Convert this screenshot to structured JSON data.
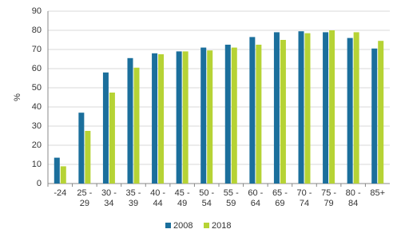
{
  "chart_data": {
    "type": "bar",
    "y_label": "%",
    "categories": [
      "-24",
      "25 - 29",
      "30 - 34",
      "35 - 39",
      "40 - 44",
      "45 - 49",
      "50 - 54",
      "55 - 59",
      "60 - 64",
      "65 - 69",
      "70 - 74",
      "75 - 79",
      "80 - 84",
      "85+"
    ],
    "series": [
      {
        "name": "2008",
        "color": "#1b6f9c",
        "values": [
          13.5,
          37,
          58,
          65.5,
          68,
          69,
          71,
          72.5,
          76.5,
          79,
          79.5,
          79,
          76,
          70.5
        ]
      },
      {
        "name": "2018",
        "color": "#b6d335",
        "values": [
          9,
          27.5,
          47.5,
          60.5,
          67.5,
          69,
          69.5,
          71,
          72.5,
          75,
          78.5,
          80,
          79,
          74.5
        ]
      }
    ],
    "ylim": [
      0,
      90
    ],
    "yticks": [
      0,
      10,
      20,
      30,
      40,
      50,
      60,
      70,
      80,
      90
    ],
    "grid": true,
    "legend": "bottom"
  }
}
